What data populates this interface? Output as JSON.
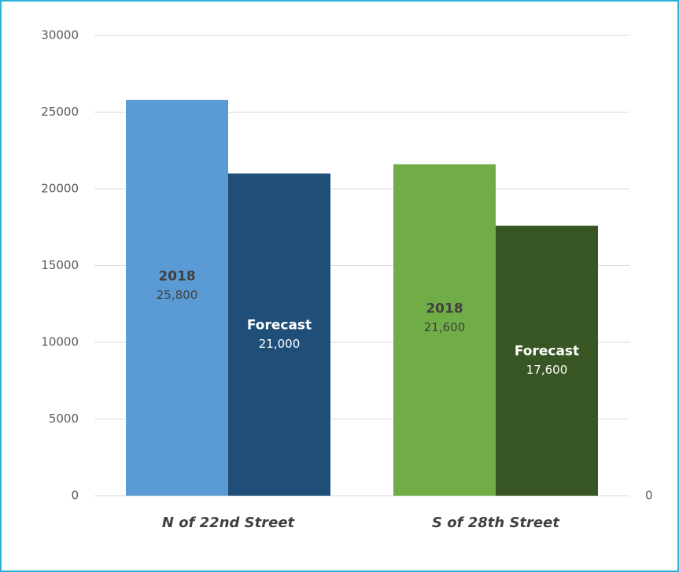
{
  "chart_data": {
    "type": "bar",
    "categories": [
      "N of 22nd Street",
      "S of 28th Street"
    ],
    "series": [
      {
        "name": "2018",
        "colors": [
          "#5b9bd5",
          "#70ad47"
        ],
        "values": [
          25800,
          21600
        ],
        "value_labels": [
          "25,800",
          "21,600"
        ]
      },
      {
        "name": "Forecast",
        "colors": [
          "#1f4e79",
          "#375623"
        ],
        "values": [
          21000,
          17600
        ],
        "value_labels": [
          "21,000",
          "17,600"
        ]
      }
    ],
    "ylim": [
      0,
      30000
    ],
    "yticks": [
      0,
      5000,
      10000,
      15000,
      20000,
      25000,
      30000
    ],
    "y2lim": [
      0,
      30000
    ],
    "y2ticks": [
      0
    ],
    "grid": true
  }
}
